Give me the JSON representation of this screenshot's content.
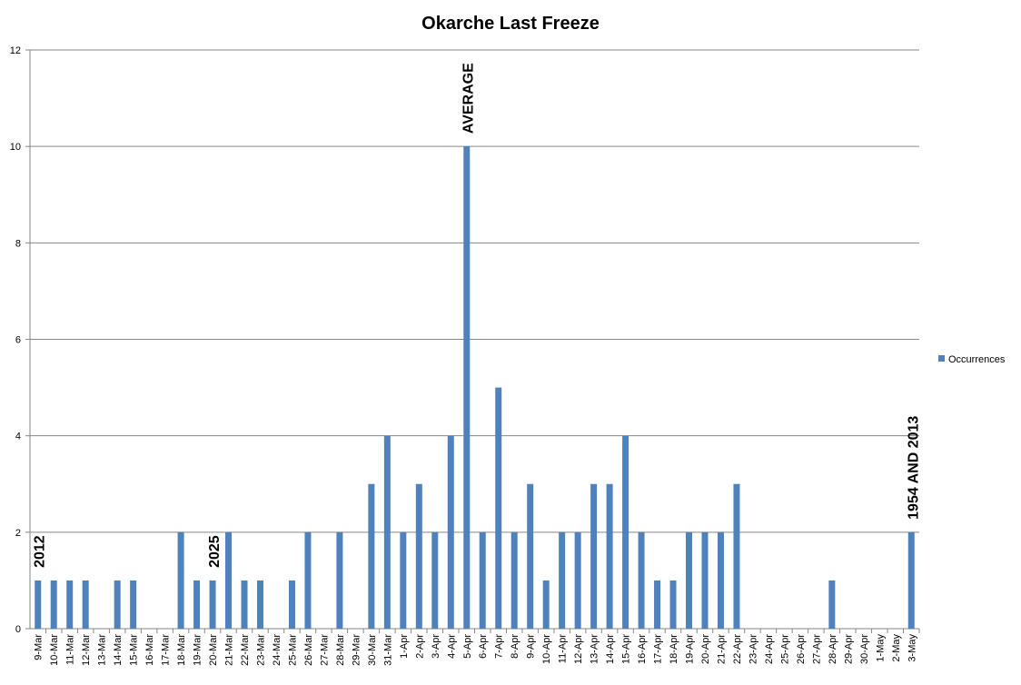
{
  "chart_data": {
    "type": "bar",
    "title": "Okarche Last Freeze",
    "categories": [
      "9-Mar",
      "10-Mar",
      "11-Mar",
      "12-Mar",
      "13-Mar",
      "14-Mar",
      "15-Mar",
      "16-Mar",
      "17-Mar",
      "18-Mar",
      "19-Mar",
      "20-Mar",
      "21-Mar",
      "22-Mar",
      "23-Mar",
      "24-Mar",
      "25-Mar",
      "26-Mar",
      "27-Mar",
      "28-Mar",
      "29-Mar",
      "30-Mar",
      "31-Mar",
      "1-Apr",
      "2-Apr",
      "3-Apr",
      "4-Apr",
      "5-Apr",
      "6-Apr",
      "7-Apr",
      "8-Apr",
      "9-Apr",
      "10-Apr",
      "11-Apr",
      "12-Apr",
      "13-Apr",
      "14-Apr",
      "15-Apr",
      "16-Apr",
      "17-Apr",
      "18-Apr",
      "19-Apr",
      "20-Apr",
      "21-Apr",
      "22-Apr",
      "23-Apr",
      "24-Apr",
      "25-Apr",
      "26-Apr",
      "27-Apr",
      "28-Apr",
      "29-Apr",
      "30-Apr",
      "1-May",
      "2-May",
      "3-May"
    ],
    "series": [
      {
        "name": "Occurrences",
        "color": "#4f81bd",
        "values": [
          1,
          1,
          1,
          1,
          0,
          1,
          1,
          0,
          0,
          2,
          1,
          1,
          2,
          1,
          1,
          0,
          1,
          2,
          0,
          2,
          0,
          3,
          4,
          2,
          3,
          2,
          4,
          10,
          2,
          5,
          2,
          3,
          1,
          2,
          2,
          3,
          3,
          4,
          2,
          1,
          1,
          2,
          2,
          2,
          3,
          0,
          0,
          0,
          0,
          0,
          1,
          0,
          0,
          0,
          0,
          2
        ]
      }
    ],
    "ylim": [
      0,
      12
    ],
    "yticks": [
      0,
      2,
      4,
      6,
      8,
      10,
      12
    ],
    "grid": true,
    "legend": "right",
    "annotations": [
      {
        "text": "2012",
        "category": "9-Mar"
      },
      {
        "text": "2025",
        "category": "20-Mar"
      },
      {
        "text": "AVERAGE",
        "category": "5-Apr"
      },
      {
        "text": "1954 AND 2013",
        "category": "3-May"
      }
    ]
  }
}
